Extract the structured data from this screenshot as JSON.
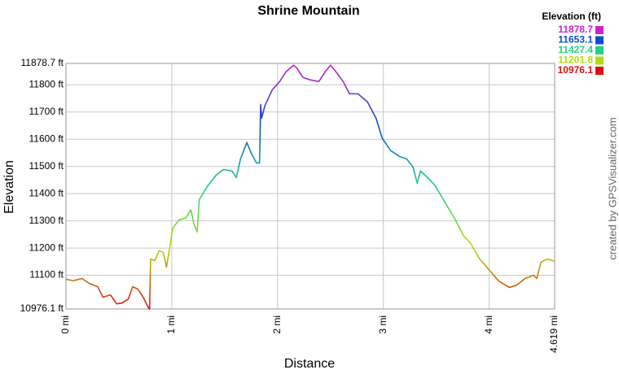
{
  "chart_data": {
    "type": "line",
    "title": "Shrine Mountain",
    "xlabel": "Distance",
    "ylabel": "Elevation",
    "credit": "created by GPSVisualizer.com",
    "legend_title": "Elevation (ft)",
    "color_scale": [
      {
        "value": 11878.7,
        "color": "#cc22cc"
      },
      {
        "value": 11653.1,
        "color": "#0a4fcc"
      },
      {
        "value": 11427.4,
        "color": "#22d08a"
      },
      {
        "value": 11201.8,
        "color": "#b0dd10"
      },
      {
        "value": 10976.1,
        "color": "#dd1111"
      }
    ],
    "xlim": [
      0,
      4.619
    ],
    "xticks": [
      {
        "value": 0,
        "label": "0 mi"
      },
      {
        "value": 1,
        "label": "1 mi"
      },
      {
        "value": 2,
        "label": "2 mi"
      },
      {
        "value": 3,
        "label": "3 mi"
      },
      {
        "value": 4,
        "label": "4 mi"
      },
      {
        "value": 4.619,
        "label": "4.619 mi"
      }
    ],
    "ylim": [
      10976.1,
      11878.7
    ],
    "yticks": [
      {
        "value": 10976.1,
        "label": "10976.1 ft"
      },
      {
        "value": 11100,
        "label": "11100 ft"
      },
      {
        "value": 11200,
        "label": "11200 ft"
      },
      {
        "value": 11300,
        "label": "11300 ft"
      },
      {
        "value": 11400,
        "label": "11400 ft"
      },
      {
        "value": 11500,
        "label": "11500 ft"
      },
      {
        "value": 11600,
        "label": "11600 ft"
      },
      {
        "value": 11700,
        "label": "11700 ft"
      },
      {
        "value": 11800,
        "label": "11800 ft"
      },
      {
        "value": 11878.7,
        "label": "11878.7 ft"
      }
    ],
    "grid": true,
    "x": [
      0,
      0.07,
      0.15,
      0.22,
      0.3,
      0.35,
      0.42,
      0.48,
      0.53,
      0.59,
      0.63,
      0.68,
      0.73,
      0.78,
      0.79,
      0.8,
      0.84,
      0.88,
      0.92,
      0.95,
      0.98,
      1.01,
      1.07,
      1.13,
      1.18,
      1.21,
      1.24,
      1.26,
      1.34,
      1.42,
      1.49,
      1.57,
      1.61,
      1.65,
      1.71,
      1.75,
      1.8,
      1.83,
      1.84,
      1.85,
      1.88,
      1.95,
      2.02,
      2.08,
      2.15,
      2.18,
      2.24,
      2.31,
      2.39,
      2.45,
      2.5,
      2.54,
      2.62,
      2.68,
      2.76,
      2.85,
      2.93,
      2.99,
      3.07,
      3.15,
      3.22,
      3.28,
      3.32,
      3.35,
      3.42,
      3.49,
      3.59,
      3.68,
      3.76,
      3.82,
      3.91,
      3.99,
      4.09,
      4.19,
      4.26,
      4.34,
      4.42,
      4.45,
      4.49,
      4.55,
      4.619
    ],
    "values": [
      11085,
      11080,
      11088,
      11070,
      11058,
      11019,
      11028,
      10995,
      10998,
      11013,
      11058,
      11049,
      11019,
      10980,
      10976,
      11160,
      11154,
      11190,
      11184,
      11130,
      11199,
      11274,
      11304,
      11310,
      11340,
      11289,
      11259,
      11378,
      11429,
      11468,
      11489,
      11483,
      11459,
      11528,
      11588,
      11549,
      11513,
      11513,
      11728,
      11678,
      11723,
      11782,
      11812,
      11848,
      11872,
      11863,
      11827,
      11818,
      11812,
      11848,
      11872,
      11854,
      11812,
      11767,
      11767,
      11737,
      11678,
      11603,
      11558,
      11537,
      11528,
      11498,
      11438,
      11483,
      11459,
      11429,
      11363,
      11304,
      11244,
      11220,
      11160,
      11124,
      11079,
      11055,
      11064,
      11088,
      11100,
      11088,
      11148,
      11160,
      11151
    ]
  }
}
